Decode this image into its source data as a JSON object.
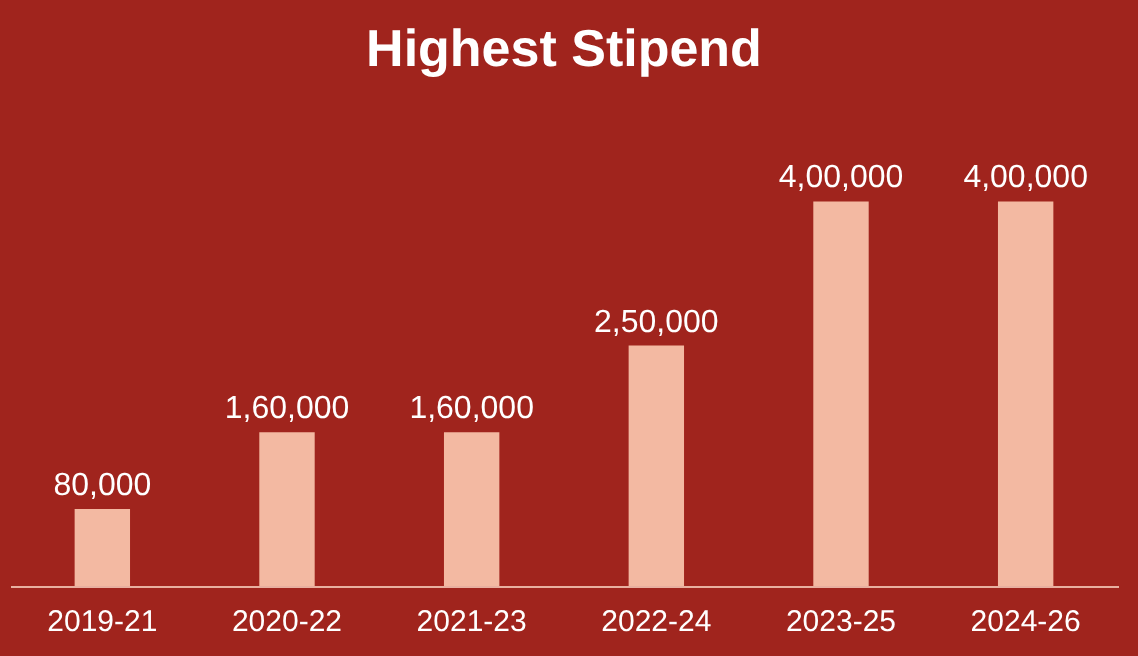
{
  "chart_data": {
    "type": "bar",
    "title": "Highest Stipend",
    "categories": [
      "2019-21",
      "2020-22",
      "2021-23",
      "2022-24",
      "2023-25",
      "2024-26"
    ],
    "values": [
      80000,
      160000,
      160000,
      250000,
      400000,
      400000
    ],
    "value_labels": [
      "80,000",
      "1,60,000",
      "1,60,000",
      "2,50,000",
      "4,00,000",
      "4,00,000"
    ],
    "color": "#f3b9a2",
    "grid": false
  }
}
